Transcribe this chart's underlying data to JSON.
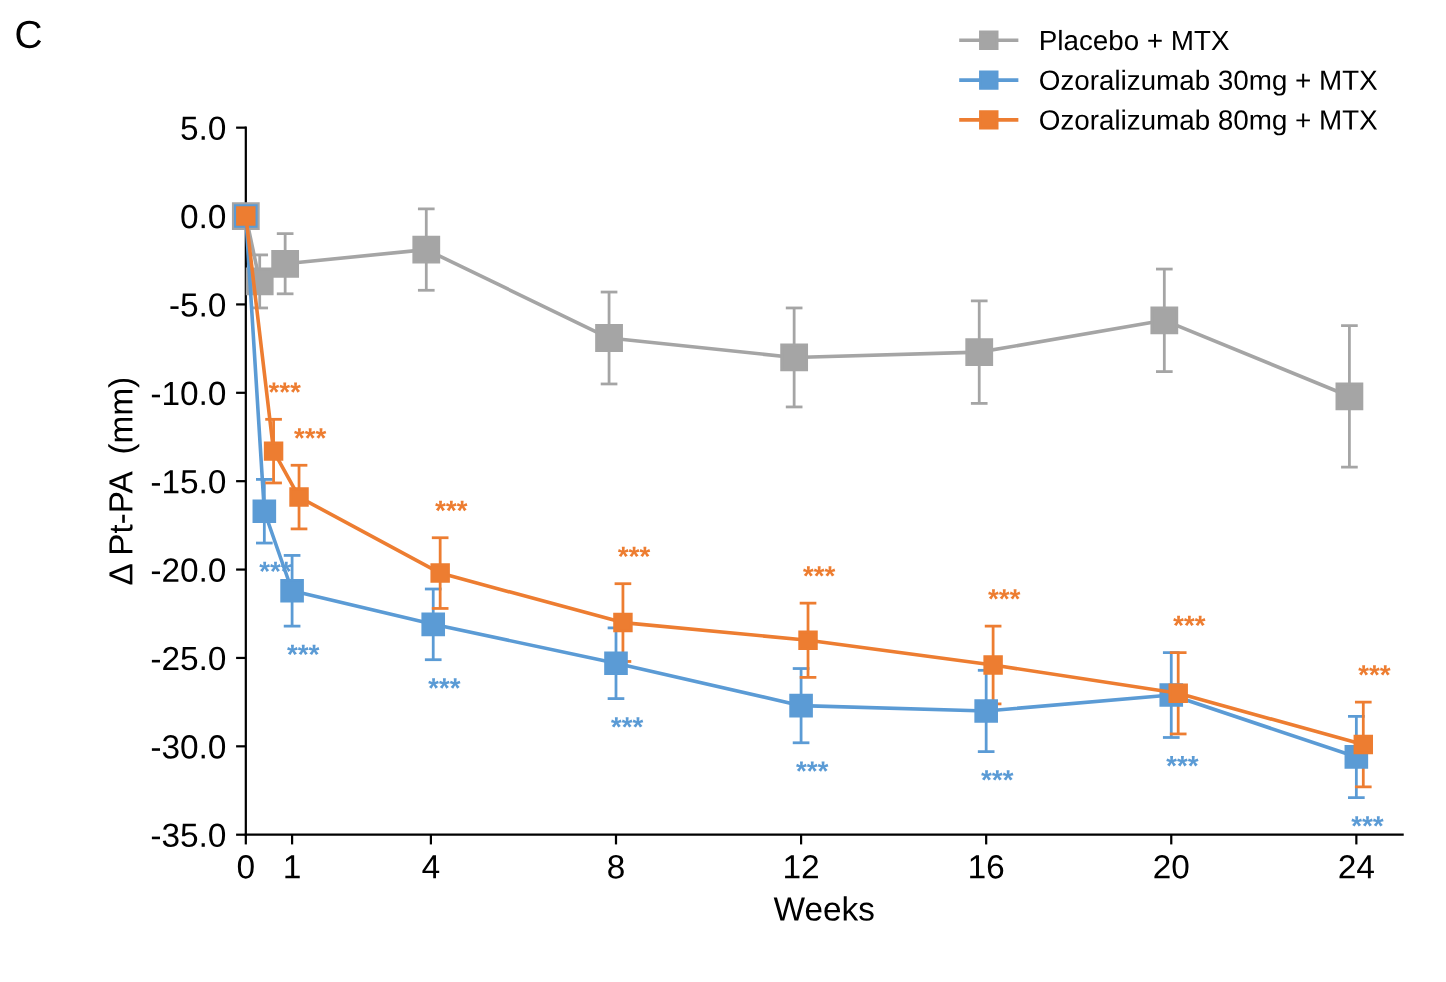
{
  "chart_data": {
    "type": "line",
    "xlabel": "Weeks",
    "ylabel": "Δ Pt-PA  (mm)",
    "xlim": [
      0,
      25
    ],
    "xticks": [
      0,
      1,
      4,
      8,
      12,
      16,
      20,
      24
    ],
    "ylim": [
      -35,
      5
    ],
    "yticks": [
      {
        "value": 5,
        "label": "5.0"
      },
      {
        "value": 0,
        "label": "0.0"
      },
      {
        "value": -5,
        "label": "-5.0"
      },
      {
        "value": -10,
        "label": "-10.0"
      },
      {
        "value": -15,
        "label": "-15.0"
      },
      {
        "value": -20,
        "label": "-20.0"
      },
      {
        "value": -25,
        "label": "-25.0"
      },
      {
        "value": -30,
        "label": "-30.0"
      },
      {
        "value": -35,
        "label": "-35.0"
      }
    ],
    "grid": false,
    "legend": "top right",
    "marker": "square",
    "line_style": "solid",
    "series": [
      {
        "name": "Placebo + MTX",
        "color": "#a5a5a5",
        "x": [
          0,
          0.3,
          0.85,
          3.9,
          7.85,
          11.85,
          15.85,
          19.85,
          23.85
        ],
        "values": [
          0,
          -3.7,
          -2.7,
          -1.9,
          -6.9,
          -8.0,
          -7.7,
          -5.9,
          -10.2
        ],
        "errors": [
          null,
          1.5,
          1.7,
          2.3,
          2.6,
          2.8,
          2.9,
          2.9,
          4.0
        ]
      },
      {
        "name": "Ozoralizumab 30mg + MTX",
        "color": "#5b9bd5",
        "x": [
          0,
          0.4,
          1.0,
          4.05,
          8.0,
          12.0,
          16.0,
          20.0,
          24.0
        ],
        "values": [
          0,
          -16.7,
          -21.2,
          -23.1,
          -25.3,
          -27.7,
          -28.0,
          -27.1,
          -30.6
        ],
        "errors": [
          null,
          1.8,
          2.0,
          2.0,
          2.0,
          2.1,
          2.3,
          2.4,
          2.3
        ]
      },
      {
        "name": "Ozoralizumab 80mg + MTX",
        "color": "#ed7d31",
        "x": [
          0,
          0.6,
          1.15,
          4.2,
          8.15,
          12.15,
          16.15,
          20.15,
          24.15
        ],
        "values": [
          0,
          -13.3,
          -15.9,
          -20.2,
          -23.0,
          -24.0,
          -25.4,
          -27.0,
          -29.9
        ],
        "errors": [
          null,
          1.8,
          1.8,
          2.0,
          2.2,
          2.1,
          2.2,
          2.3,
          2.4
        ]
      }
    ],
    "annotations": [
      "C",
      {
        "text": "***",
        "x": 0.6,
        "y": -13.3
      },
      {
        "text": "***",
        "x": 1.15,
        "y": -15.9
      },
      {
        "text": "***",
        "x": 4.2,
        "y": -20.2
      },
      {
        "text": "***",
        "x": 8.15,
        "y": -23.0
      },
      {
        "text": "***",
        "x": 12.15,
        "y": -24.0
      },
      {
        "text": "***",
        "x": 16.15,
        "y": -25.4
      },
      {
        "text": "***",
        "x": 20.15,
        "y": -27.0
      },
      {
        "text": "***",
        "x": 24.15,
        "y": -29.9
      },
      {
        "text": "***",
        "x": 0.4,
        "y": -16.7
      },
      {
        "text": "***",
        "x": 1.0,
        "y": -21.2
      },
      {
        "text": "***",
        "x": 4.05,
        "y": -23.1
      },
      {
        "text": "***",
        "x": 8.0,
        "y": -25.3
      },
      {
        "text": "***",
        "x": 12.0,
        "y": -27.7
      },
      {
        "text": "***",
        "x": 16.0,
        "y": -28.0
      },
      {
        "text": "***",
        "x": 20.0,
        "y": -27.1
      },
      {
        "text": "***",
        "x": 24.0,
        "y": -30.6
      }
    ]
  }
}
